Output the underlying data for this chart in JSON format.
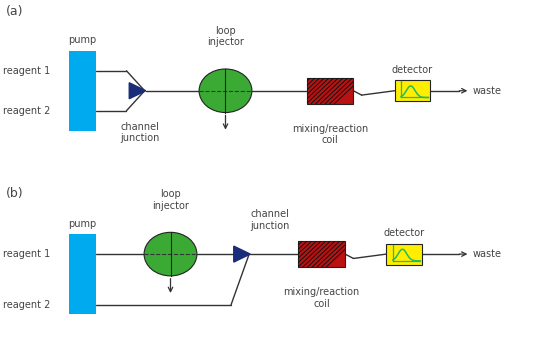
{
  "background_color": "#ffffff",
  "pump_color": "#00aaee",
  "green_color": "#3aaa35",
  "red_color": "#bb1111",
  "yellow_color": "#ffee00",
  "blue_arrow_color": "#1a2d7a",
  "line_color": "#333333",
  "text_color": "#444444",
  "cyan_signal_color": "#22bb66",
  "panel_a_label": "(a)",
  "panel_b_label": "(b)",
  "pump_label": "pump",
  "reagent1_label": "reagent 1",
  "reagent2_label": "reagent 2",
  "loop_injector_label": "loop\ninjector",
  "channel_junction_label": "channel\njunction",
  "mixing_label": "mixing/reaction\ncoil",
  "detector_label": "detector",
  "waste_label": "waste"
}
